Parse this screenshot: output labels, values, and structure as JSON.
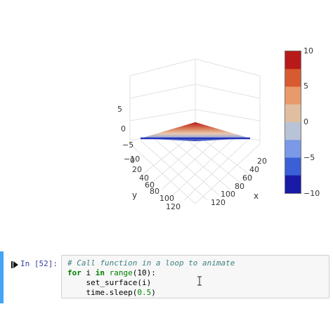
{
  "plot": {
    "z_axis_ticks": [
      "5",
      "0",
      "−5",
      "−10"
    ],
    "x_axis_ticks": [
      "20",
      "40",
      "60",
      "80",
      "100",
      "120"
    ],
    "y_axis_ticks": [
      "0",
      "20",
      "40",
      "60",
      "80",
      "100",
      "120"
    ],
    "x_axis_title": "x",
    "y_axis_title": "y",
    "colorscale_colors": [
      "#1a1aa8",
      "#3b5fd6",
      "#7a9ae8",
      "#b8c3d6",
      "#e0bfa0",
      "#e89a6a",
      "#d85a30",
      "#b81a1a"
    ]
  },
  "colorbar": {
    "labels": [
      "10",
      "5",
      "0",
      "−5",
      "−10"
    ],
    "range": [
      -10,
      10
    ]
  },
  "cell": {
    "prompt": "In [52]:",
    "code": {
      "line1_comment": "# Call function in a loop to animate",
      "line2_kw_for": "for",
      "line2_var": " i ",
      "line2_kw_in": "in",
      "line2_builtin": " range",
      "line2_rest": "(10):",
      "line3": "    set_surface(i)",
      "line4_a": "    time.sleep(",
      "line4_num": "0.5",
      "line4_b": ")"
    }
  }
}
